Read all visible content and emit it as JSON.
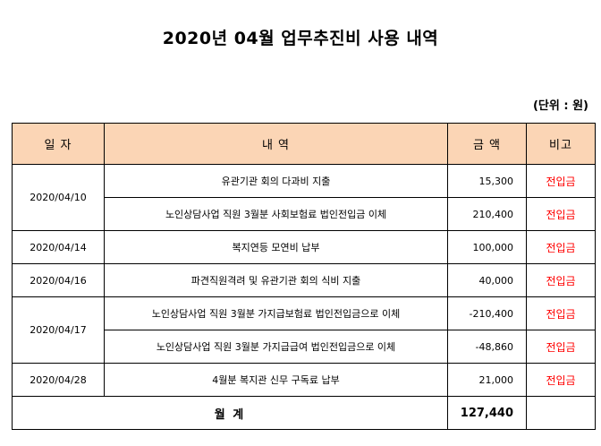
{
  "title": "2020년 04월   업무추진비 사용 내역",
  "unit": "(단위 : 원)",
  "headers": {
    "date": "일  자",
    "desc": "내    역",
    "amount": "금    액",
    "note": "비고"
  },
  "groups": [
    {
      "date": "2020/04/10",
      "rows": [
        {
          "desc": "유관기관 회의 다과비 지출",
          "amount": "15,300",
          "note": "전입금"
        },
        {
          "desc": "노인상담사업 직원 3월분 사회보험료 법인전입금 이체",
          "amount": "210,400",
          "note": "전입금"
        }
      ]
    },
    {
      "date": "2020/04/14",
      "rows": [
        {
          "desc": "복지연등 모연비 납부",
          "amount": "100,000",
          "note": "전입금"
        }
      ]
    },
    {
      "date": "2020/04/16",
      "rows": [
        {
          "desc": "파견직원격려 및 유관기관 회의 식비 지출",
          "amount": "40,000",
          "note": "전입금"
        }
      ]
    },
    {
      "date": "2020/04/17",
      "rows": [
        {
          "desc": "노인상담사업 직원 3월분 가지급보험료 법인전입금으로 이체",
          "amount": "-210,400",
          "note": "전입금"
        },
        {
          "desc": "노인상담사업 직원 3월분 가지급급여 법인전입금으로 이체",
          "amount": "-48,860",
          "note": "전입금"
        }
      ]
    },
    {
      "date": "2020/04/28",
      "rows": [
        {
          "desc": "4월분 복지관 신무 구독료 납부",
          "amount": "21,000",
          "note": "전입금"
        }
      ]
    }
  ],
  "total": {
    "label": "월 계",
    "amount": "127,440"
  }
}
